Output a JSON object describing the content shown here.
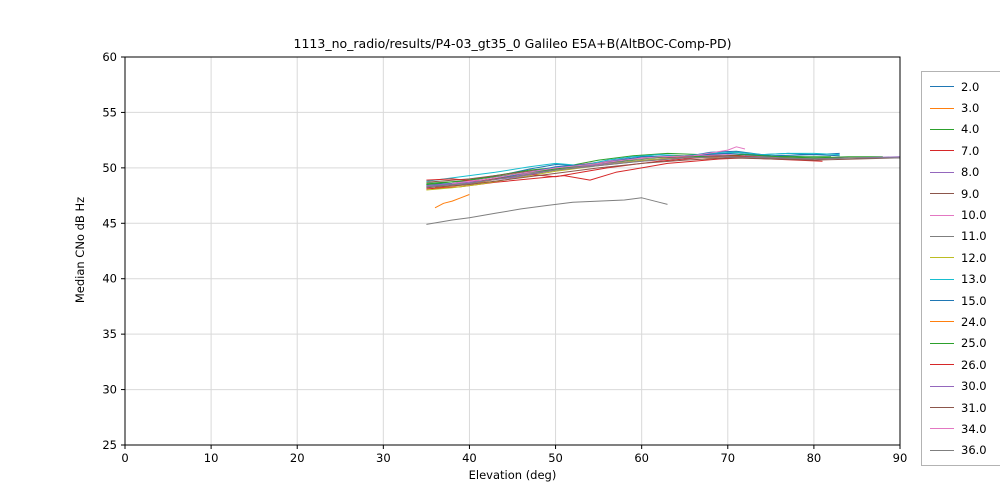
{
  "chart_data": {
    "type": "line",
    "title": "1113_no_radio/results/P4-03_gt35_0 Galileo E5A+B(AltBOC-Comp-PD)",
    "xlabel": "Elevation (deg)",
    "ylabel": "Median CNo dB Hz",
    "xlim": [
      0,
      90
    ],
    "ylim": [
      25,
      60
    ],
    "xticks": [
      0,
      10,
      20,
      30,
      40,
      50,
      60,
      70,
      80,
      90
    ],
    "yticks": [
      25,
      30,
      35,
      40,
      45,
      50,
      55,
      60
    ],
    "grid": true,
    "grid_color": "#d9d9d9",
    "axis_color": "#000000",
    "legend_position": "right",
    "series": [
      {
        "name": "2.0",
        "color": "#1f77b4",
        "points": [
          [
            35,
            48.5
          ],
          [
            38,
            48.6
          ],
          [
            41,
            49.0
          ],
          [
            44,
            49.4
          ],
          [
            47,
            49.9
          ],
          [
            50,
            50.3
          ],
          [
            53,
            50.2
          ],
          [
            56,
            50.6
          ],
          [
            59,
            51.0
          ],
          [
            62,
            51.2
          ],
          [
            65,
            51.0
          ],
          [
            68,
            51.4
          ],
          [
            71,
            51.5
          ],
          [
            74,
            51.2
          ],
          [
            77,
            51.3
          ],
          [
            80,
            51.2
          ],
          [
            83,
            51.3
          ]
        ]
      },
      {
        "name": "3.0",
        "color": "#ff7f0e",
        "points": [
          [
            36,
            48.2
          ],
          [
            40,
            48.5
          ],
          [
            44,
            49.1
          ],
          [
            48,
            49.6
          ],
          [
            52,
            50.0
          ],
          [
            56,
            50.4
          ],
          [
            60,
            50.9
          ],
          [
            64,
            51.0
          ],
          [
            68,
            50.9
          ],
          [
            72,
            51.1
          ],
          [
            76,
            50.9
          ],
          [
            80,
            50.8
          ],
          [
            84,
            50.9
          ],
          [
            88,
            50.9
          ]
        ]
      },
      {
        "name": "4.0",
        "color": "#2ca02c",
        "points": [
          [
            35,
            48.6
          ],
          [
            39,
            48.8
          ],
          [
            43,
            49.3
          ],
          [
            47,
            49.8
          ],
          [
            51,
            50.1
          ],
          [
            55,
            50.7
          ],
          [
            59,
            51.1
          ],
          [
            63,
            51.3
          ],
          [
            67,
            51.2
          ],
          [
            71,
            51.4
          ],
          [
            75,
            51.1
          ],
          [
            79,
            51.0
          ],
          [
            82,
            51.0
          ]
        ]
      },
      {
        "name": "7.0",
        "color": "#d62728",
        "points": [
          [
            35,
            48.1
          ],
          [
            39,
            48.3
          ],
          [
            43,
            48.7
          ],
          [
            47,
            49.0
          ],
          [
            51,
            49.3
          ],
          [
            54,
            48.9
          ],
          [
            57,
            49.6
          ],
          [
            60,
            50.0
          ],
          [
            63,
            50.4
          ],
          [
            66,
            50.6
          ],
          [
            69,
            50.8
          ],
          [
            72,
            50.9
          ],
          [
            75,
            50.8
          ],
          [
            78,
            50.7
          ],
          [
            81,
            50.6
          ]
        ]
      },
      {
        "name": "8.0",
        "color": "#9467bd",
        "points": [
          [
            35,
            48.4
          ],
          [
            40,
            48.6
          ],
          [
            45,
            49.2
          ],
          [
            50,
            49.9
          ],
          [
            55,
            50.3
          ],
          [
            60,
            50.7
          ],
          [
            65,
            51.0
          ],
          [
            70,
            51.2
          ],
          [
            75,
            51.0
          ],
          [
            80,
            50.9
          ],
          [
            85,
            50.9
          ],
          [
            90,
            50.9
          ]
        ]
      },
      {
        "name": "9.0",
        "color": "#8c564b",
        "points": [
          [
            35,
            48.7
          ],
          [
            40,
            49.0
          ],
          [
            45,
            49.5
          ],
          [
            50,
            50.0
          ],
          [
            55,
            50.5
          ],
          [
            60,
            50.9
          ],
          [
            65,
            51.0
          ],
          [
            70,
            51.1
          ],
          [
            75,
            50.9
          ],
          [
            80,
            50.8
          ],
          [
            84,
            50.9
          ]
        ]
      },
      {
        "name": "10.0",
        "color": "#e377c2",
        "points": [
          [
            38,
            48.5
          ],
          [
            42,
            48.9
          ],
          [
            46,
            49.4
          ],
          [
            50,
            50.0
          ],
          [
            54,
            50.4
          ],
          [
            58,
            50.8
          ],
          [
            62,
            51.0
          ],
          [
            66,
            51.1
          ],
          [
            69,
            51.2
          ],
          [
            72,
            51.1
          ]
        ]
      },
      {
        "name": "11.0",
        "color": "#7f7f7f",
        "points": [
          [
            35,
            44.9
          ],
          [
            38,
            45.3
          ],
          [
            40,
            45.5
          ],
          [
            43,
            45.9
          ],
          [
            46,
            46.3
          ],
          [
            49,
            46.6
          ],
          [
            52,
            46.9
          ],
          [
            55,
            47.0
          ],
          [
            58,
            47.1
          ],
          [
            60,
            47.3
          ],
          [
            62,
            46.9
          ],
          [
            63,
            46.7
          ]
        ]
      },
      {
        "name": "12.0",
        "color": "#bcbd22",
        "points": [
          [
            35,
            48.0
          ],
          [
            38,
            48.2
          ],
          [
            41,
            48.5
          ],
          [
            44,
            48.9
          ],
          [
            47,
            49.3
          ],
          [
            50,
            49.7
          ],
          [
            53,
            50.0
          ],
          [
            56,
            50.3
          ],
          [
            59,
            50.6
          ],
          [
            62,
            50.8
          ],
          [
            65,
            50.9
          ],
          [
            68,
            51.0
          ],
          [
            71,
            51.0
          ],
          [
            74,
            50.9
          ]
        ]
      },
      {
        "name": "13.0",
        "color": "#17becf",
        "points": [
          [
            35,
            48.8
          ],
          [
            39,
            49.2
          ],
          [
            43,
            49.6
          ],
          [
            47,
            50.1
          ],
          [
            50,
            50.4
          ],
          [
            53,
            50.2
          ],
          [
            56,
            50.7
          ],
          [
            59,
            51.0
          ],
          [
            62,
            51.2
          ],
          [
            65,
            51.1
          ],
          [
            68,
            51.3
          ],
          [
            71,
            51.4
          ],
          [
            74,
            51.2
          ],
          [
            77,
            51.3
          ],
          [
            80,
            51.3
          ],
          [
            83,
            51.2
          ]
        ]
      },
      {
        "name": "15.0",
        "color": "#1f77b4",
        "points": [
          [
            35,
            48.3
          ],
          [
            40,
            48.6
          ],
          [
            45,
            49.3
          ],
          [
            50,
            50.1
          ],
          [
            55,
            50.4
          ],
          [
            60,
            51.0
          ],
          [
            65,
            51.1
          ],
          [
            70,
            51.3
          ],
          [
            75,
            51.1
          ],
          [
            80,
            51.2
          ],
          [
            83,
            51.1
          ]
        ]
      },
      {
        "name": "24.0",
        "color": "#ff7f0e",
        "points": [
          [
            36,
            46.4
          ],
          [
            37,
            46.8
          ],
          [
            38,
            47.0
          ],
          [
            39,
            47.3
          ],
          [
            40,
            47.6
          ]
        ]
      },
      {
        "name": "25.0",
        "color": "#2ca02c",
        "points": [
          [
            35,
            48.5
          ],
          [
            40,
            48.9
          ],
          [
            45,
            49.4
          ],
          [
            50,
            49.9
          ],
          [
            55,
            50.4
          ],
          [
            60,
            50.8
          ],
          [
            64,
            51.1
          ],
          [
            68,
            51.0
          ],
          [
            72,
            51.2
          ],
          [
            76,
            51.0
          ],
          [
            80,
            50.9
          ],
          [
            84,
            51.0
          ],
          [
            88,
            51.0
          ]
        ]
      },
      {
        "name": "26.0",
        "color": "#d62728",
        "points": [
          [
            35,
            48.9
          ],
          [
            38,
            49.0
          ],
          [
            41,
            48.8
          ],
          [
            44,
            49.1
          ],
          [
            47,
            49.4
          ],
          [
            50,
            49.2
          ],
          [
            53,
            49.6
          ],
          [
            56,
            50.0
          ],
          [
            59,
            50.3
          ],
          [
            62,
            50.6
          ],
          [
            65,
            50.8
          ],
          [
            68,
            51.0
          ],
          [
            71,
            51.1
          ],
          [
            74,
            50.9
          ],
          [
            77,
            50.8
          ],
          [
            80,
            50.7
          ]
        ]
      },
      {
        "name": "30.0",
        "color": "#9467bd",
        "points": [
          [
            35,
            48.4
          ],
          [
            40,
            48.7
          ],
          [
            45,
            49.1
          ],
          [
            50,
            49.8
          ],
          [
            55,
            50.2
          ],
          [
            60,
            50.6
          ],
          [
            65,
            50.9
          ],
          [
            70,
            51.0
          ],
          [
            75,
            50.9
          ],
          [
            80,
            50.8
          ],
          [
            85,
            50.9
          ],
          [
            90,
            51.0
          ]
        ]
      },
      {
        "name": "31.0",
        "color": "#8c564b",
        "points": [
          [
            35,
            48.2
          ],
          [
            40,
            48.5
          ],
          [
            45,
            49.0
          ],
          [
            50,
            49.5
          ],
          [
            55,
            50.0
          ],
          [
            60,
            50.4
          ],
          [
            65,
            50.7
          ],
          [
            70,
            50.9
          ],
          [
            75,
            50.8
          ],
          [
            80,
            50.7
          ],
          [
            85,
            50.8
          ],
          [
            90,
            50.9
          ]
        ]
      },
      {
        "name": "34.0",
        "color": "#e377c2",
        "points": [
          [
            38,
            48.6
          ],
          [
            42,
            49.0
          ],
          [
            46,
            49.5
          ],
          [
            50,
            50.0
          ],
          [
            54,
            50.3
          ],
          [
            58,
            50.7
          ],
          [
            62,
            51.0
          ],
          [
            66,
            51.1
          ],
          [
            70,
            51.6
          ],
          [
            71,
            51.9
          ],
          [
            72,
            51.7
          ]
        ]
      },
      {
        "name": "36.0",
        "color": "#7f7f7f",
        "points": [
          [
            35,
            48.3
          ],
          [
            40,
            48.6
          ],
          [
            45,
            49.2
          ],
          [
            50,
            49.8
          ],
          [
            55,
            50.2
          ],
          [
            60,
            50.6
          ],
          [
            65,
            50.9
          ],
          [
            70,
            51.0
          ],
          [
            75,
            50.9
          ],
          [
            80,
            50.8
          ],
          [
            85,
            50.9
          ],
          [
            90,
            50.9
          ]
        ]
      }
    ]
  }
}
